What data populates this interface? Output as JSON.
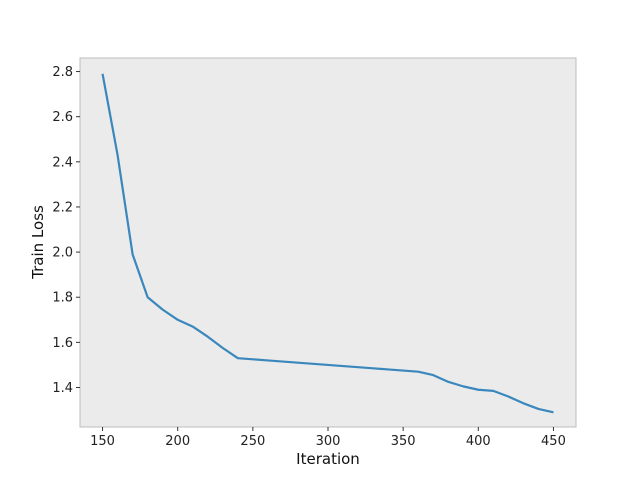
{
  "chart_data": {
    "type": "line",
    "title": "",
    "xlabel": "Iteration",
    "ylabel": "Train Loss",
    "xlim": [
      135,
      465
    ],
    "ylim": [
      1.225,
      2.86
    ],
    "xticks": [
      150,
      200,
      250,
      300,
      350,
      400,
      450
    ],
    "yticks": [
      1.4,
      1.6,
      1.8,
      2.0,
      2.2,
      2.4,
      2.6,
      2.8
    ],
    "grid": false,
    "background": "#ebebeb",
    "line_color": "#3a87bd",
    "series": [
      {
        "x": [
          150,
          160,
          170,
          180,
          190,
          200,
          210,
          220,
          230,
          240,
          250,
          260,
          270,
          280,
          290,
          300,
          310,
          320,
          330,
          340,
          350,
          360,
          370,
          380,
          390,
          400,
          410,
          420,
          430,
          440,
          450
        ],
        "values": [
          2.79,
          2.43,
          1.99,
          1.8,
          1.745,
          1.7,
          1.67,
          1.625,
          1.575,
          1.53,
          1.525,
          1.52,
          1.515,
          1.51,
          1.505,
          1.5,
          1.495,
          1.49,
          1.485,
          1.48,
          1.475,
          1.47,
          1.455,
          1.425,
          1.405,
          1.39,
          1.385,
          1.36,
          1.33,
          1.305,
          1.29
        ]
      }
    ]
  }
}
